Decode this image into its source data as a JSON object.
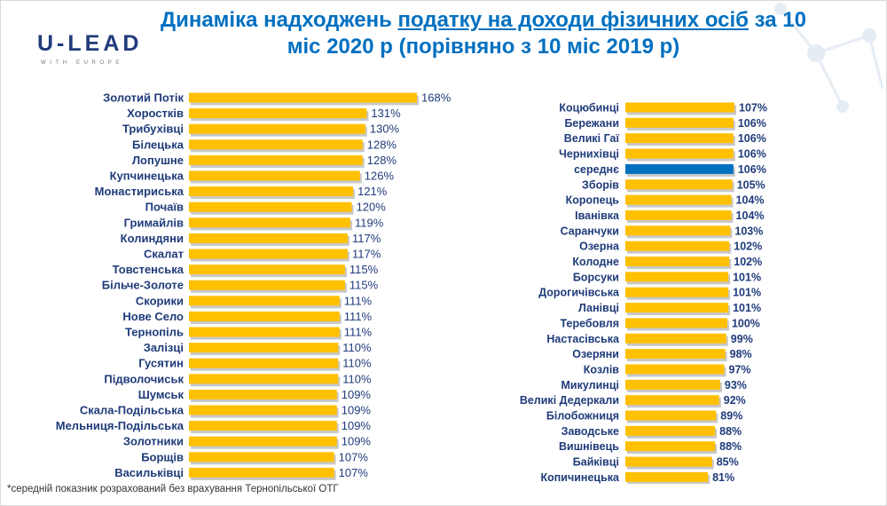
{
  "logo": {
    "main": "U-LEAD",
    "sub": "WITH EUROPE"
  },
  "title": {
    "part1": "Динаміка надходжень ",
    "link": "податку на доходи фізичних осіб",
    "part2": " за 10 міс 2020 р (порівняно з 10 міс 2019 р)"
  },
  "footnote": "*середній показник розрахований без врахування Тернопільської ОТГ",
  "colors": {
    "bar": "#ffc000",
    "highlight": "#0070c0",
    "text": "#1f3b7a",
    "shadow": "#c8c8c8"
  },
  "chart_data": [
    {
      "type": "bar",
      "orientation": "horizontal",
      "value_suffix": "%",
      "categories": [
        "Золотий Потік",
        "Хоростків",
        "Трибухівці",
        "Білецька",
        "Лопушне",
        "Купчинецька",
        "Монастириська",
        "Почаїв",
        "Гримайлів",
        "Колиндяни",
        "Скалат",
        "Товстенська",
        "Більче-Золоте",
        "Скорики",
        "Нове Село",
        "Тернопіль",
        "Залізці",
        "Гусятин",
        "Підволочиськ",
        "Шумськ",
        "Скала-Подільська",
        "Мельниця-Подільська",
        "Золотники",
        "Борщів",
        "Васильківці"
      ],
      "values": [
        168,
        131,
        130,
        128,
        128,
        126,
        121,
        120,
        119,
        117,
        117,
        115,
        115,
        111,
        111,
        111,
        110,
        110,
        110,
        109,
        109,
        109,
        109,
        107,
        107
      ],
      "labels": [
        "168%",
        "131%",
        "130%",
        "128%",
        "128%",
        "126%",
        "121%",
        "120%",
        "119%",
        "117%",
        "117%",
        "115%",
        "115%",
        "111%",
        "111%",
        "111%",
        "110%",
        "110%",
        "110%",
        "109%",
        "109%",
        "109%",
        "109%",
        "107%",
        "107%"
      ]
    },
    {
      "type": "bar",
      "orientation": "horizontal",
      "value_suffix": "%",
      "highlight_category": "середнє",
      "categories": [
        "Коцюбинці",
        "Бережани",
        "Великі Гаї",
        "Чернихівці",
        "середнє",
        "Зборів",
        "Коропець",
        "Іванівка",
        "Саранчуки",
        "Озерна",
        "Колодне",
        "Борсуки",
        "Дорогичівська",
        "Ланівці",
        "Теребовля",
        "Настасівська",
        "Озеряни",
        "Козлів",
        "Микулинці",
        "Великі Дедеркали",
        "Білобожниця",
        "Заводське",
        "Вишнівець",
        "Байківці",
        "Копичинецька"
      ],
      "values": [
        107,
        106,
        106,
        106,
        106,
        105,
        104,
        104,
        103,
        102,
        102,
        101,
        101,
        101,
        100,
        99,
        98,
        97,
        93,
        92,
        89,
        88,
        88,
        85,
        81
      ],
      "labels": [
        "107%",
        "106%",
        "106%",
        "106%",
        "106%",
        "105%",
        "104%",
        "104%",
        "103%",
        "102%",
        "102%",
        "101%",
        "101%",
        "101%",
        "100%",
        "99%",
        "98%",
        "97%",
        "93%",
        "92%",
        "89%",
        "88%",
        "88%",
        "85%",
        "81%"
      ]
    }
  ]
}
